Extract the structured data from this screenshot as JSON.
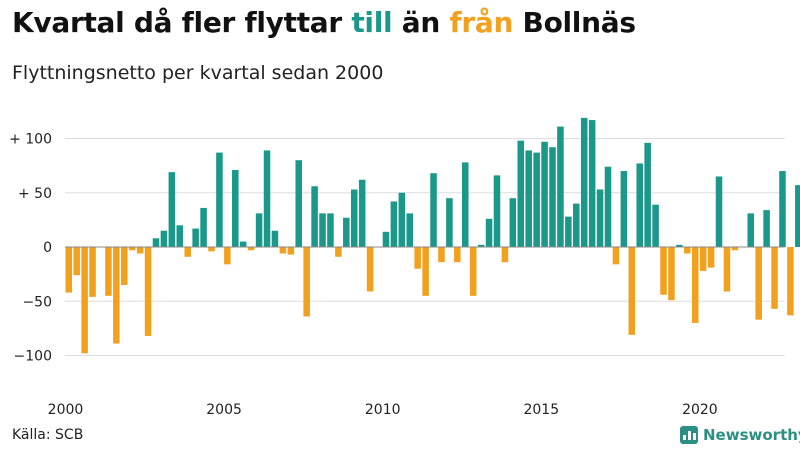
{
  "title": {
    "part1": "Kvartal då fler flyttar ",
    "till": "till",
    "part2": " än ",
    "fran": "från",
    "part3": " Bollnäs"
  },
  "subtitle": "Flyttningsnetto per kvartal sedan 2000",
  "source": "Källa: SCB",
  "brand": "Newsworthy",
  "colors": {
    "positive": "#1a9889",
    "negative": "#f2a11f",
    "grid": "#dddddd",
    "zero": "#888888"
  },
  "chart_data": {
    "type": "bar",
    "x_start": "2000 Q1",
    "ylim": [
      -120,
      130
    ],
    "yticks": [
      {
        "value": 100,
        "label": "+ 100"
      },
      {
        "value": 50,
        "label": "+  50"
      },
      {
        "value": 0,
        "label": "0"
      },
      {
        "value": -50,
        "label": "−50"
      },
      {
        "value": -100,
        "label": "−100"
      }
    ],
    "xticks": [
      {
        "value": 2000,
        "label": "2000"
      },
      {
        "value": 2005,
        "label": "2005"
      },
      {
        "value": 2010,
        "label": "2010"
      },
      {
        "value": 2015,
        "label": "2015"
      },
      {
        "value": 2020,
        "label": "2020"
      }
    ],
    "values": [
      -42,
      -26,
      -98,
      -46,
      0,
      -45,
      -89,
      -35,
      -3,
      -6,
      -82,
      8,
      15,
      69,
      20,
      -9,
      17,
      36,
      -4,
      87,
      -16,
      71,
      5,
      -3,
      31,
      89,
      15,
      -6,
      -7,
      80,
      -64,
      56,
      31,
      31,
      -9,
      27,
      53,
      62,
      -41,
      0,
      14,
      42,
      50,
      31,
      -20,
      -45,
      68,
      -14,
      45,
      -14,
      78,
      -45,
      2,
      26,
      66,
      -14,
      45,
      98,
      89,
      87,
      97,
      92,
      111,
      28,
      40,
      119,
      117,
      53,
      74,
      -16,
      70,
      -81,
      77,
      96,
      39,
      -44,
      -49,
      2,
      -6,
      -70,
      -22,
      -19,
      65,
      -41,
      -3,
      0,
      31,
      -67,
      34,
      -57,
      70,
      -63,
      57
    ]
  }
}
